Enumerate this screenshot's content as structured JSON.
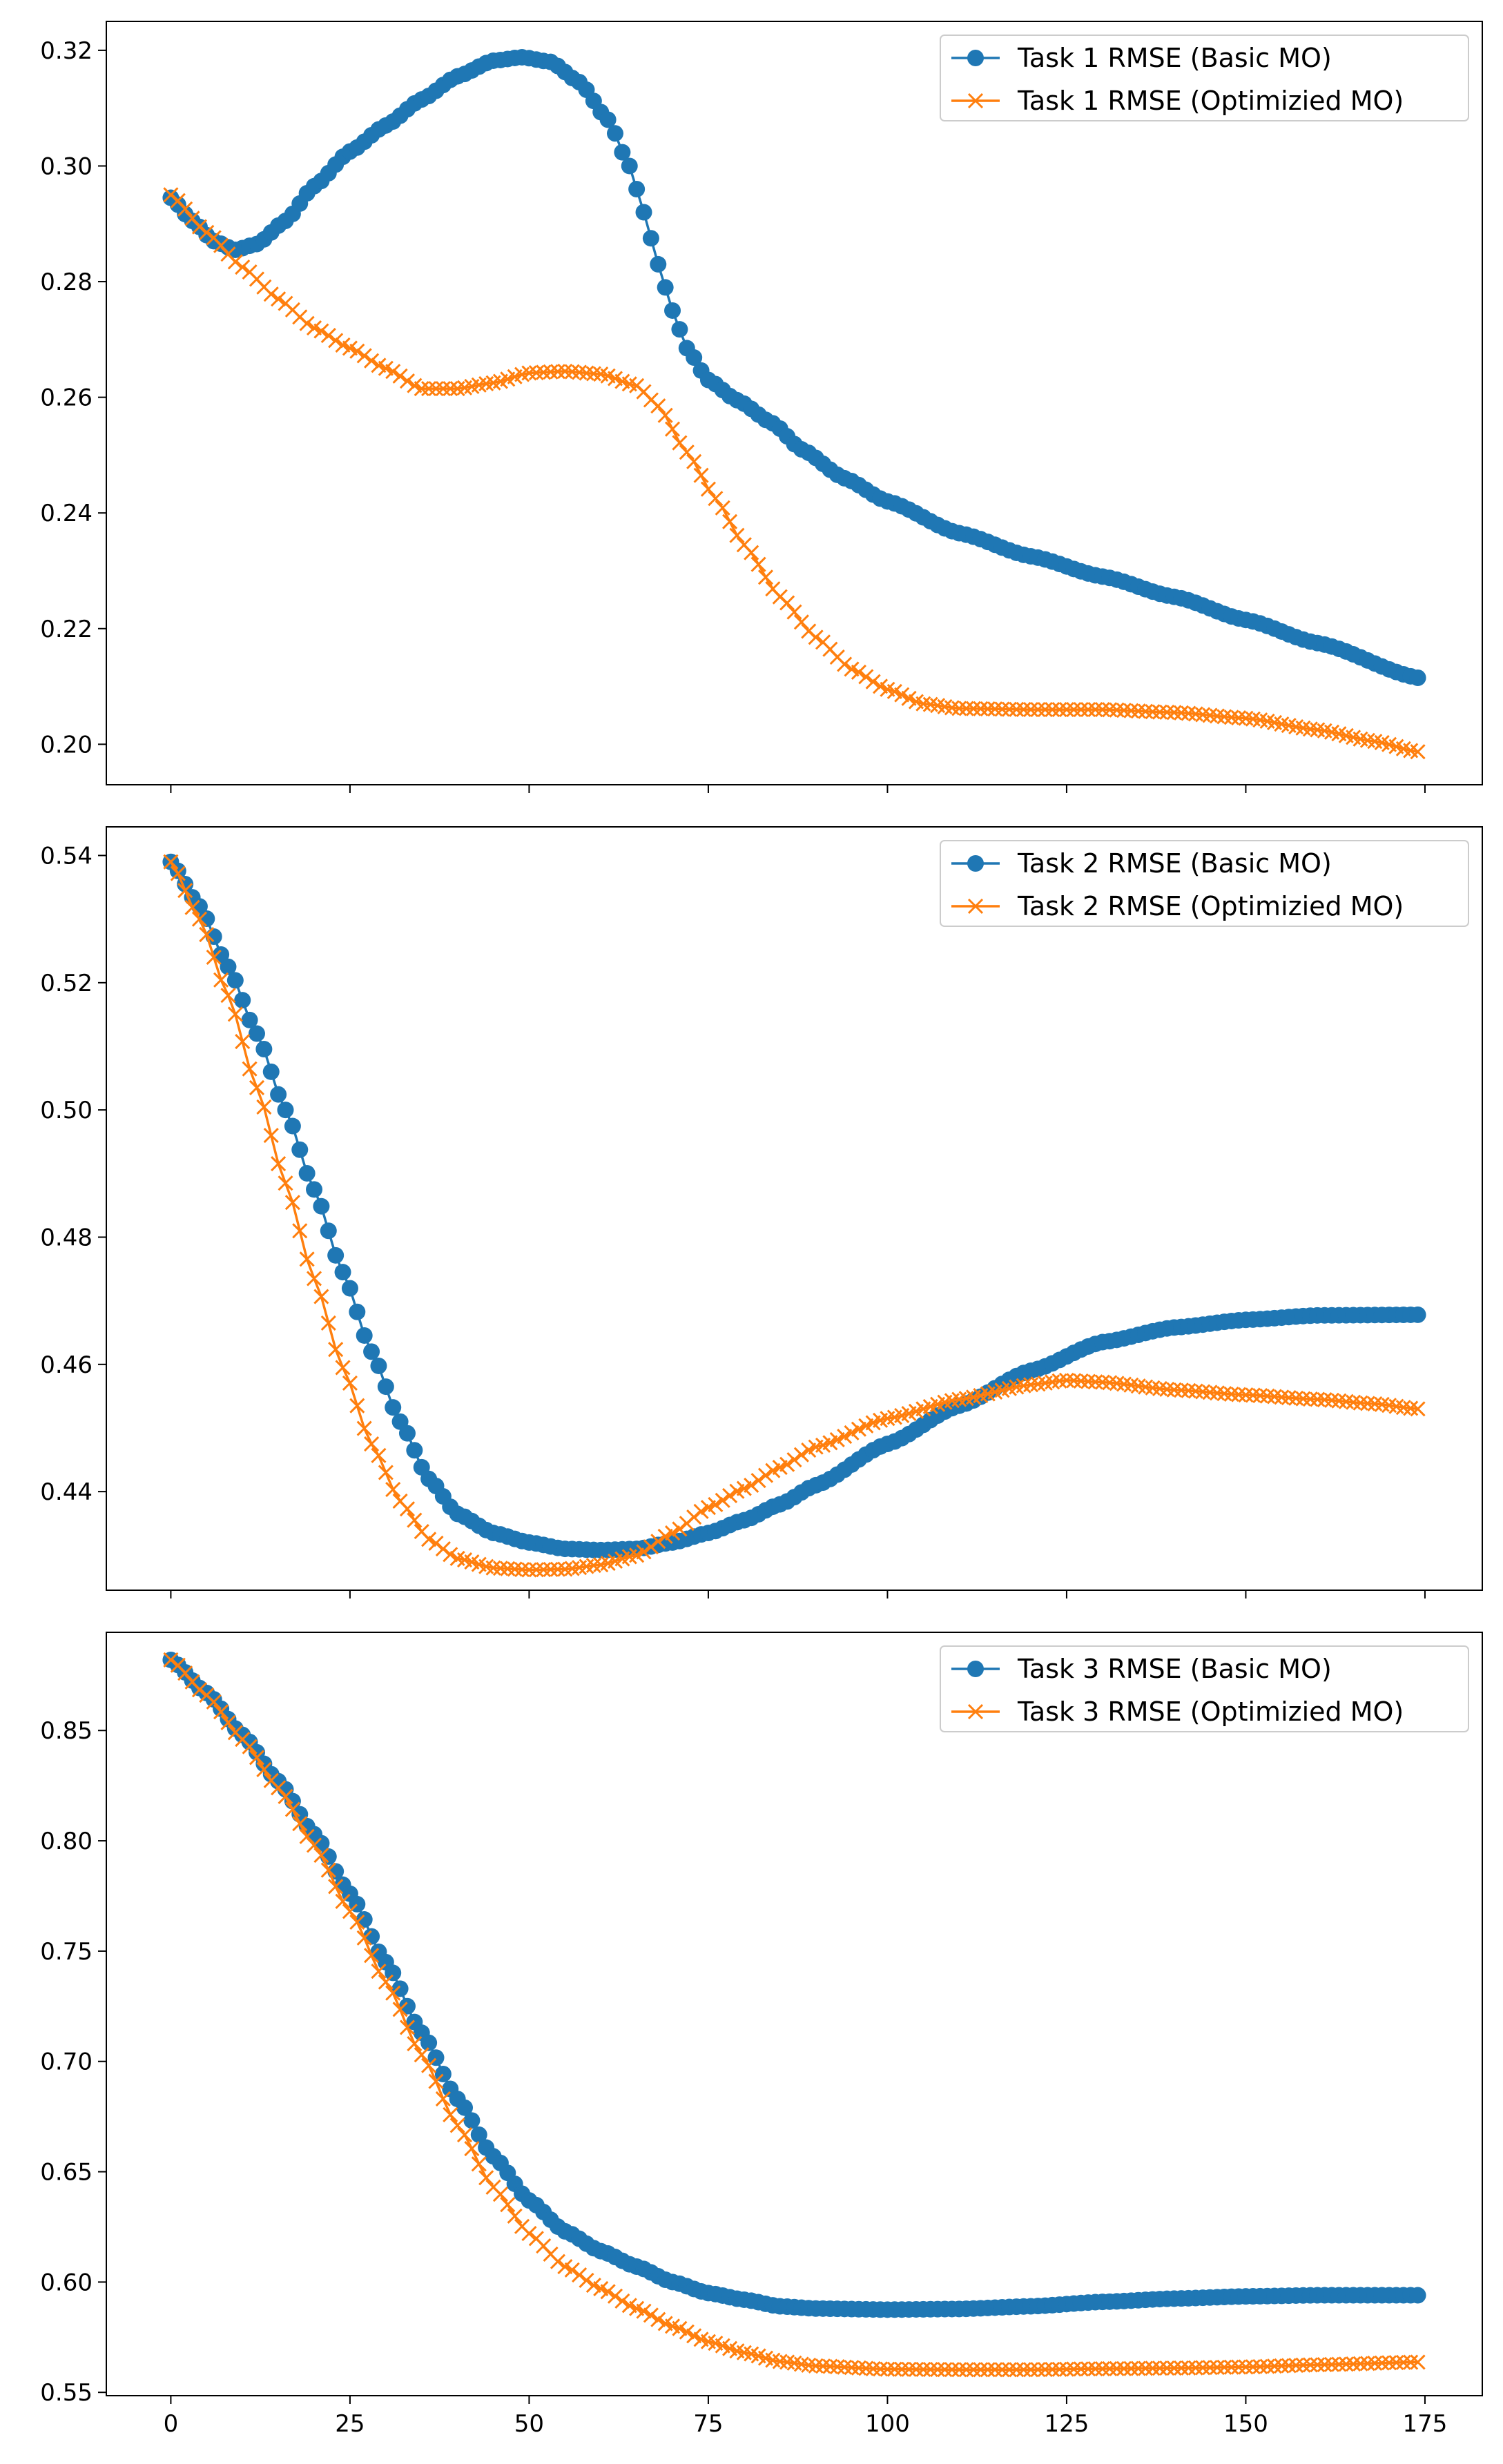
{
  "chart_data": [
    {
      "type": "line",
      "title": "",
      "xlabel": "",
      "ylabel": "",
      "xlim": [
        -9,
        183
      ],
      "ylim": [
        0.193,
        0.325
      ],
      "xticks": [
        0,
        25,
        50,
        75,
        100,
        125,
        150,
        175
      ],
      "show_x_tick_labels": false,
      "yticks": [
        0.2,
        0.22,
        0.24,
        0.26,
        0.28,
        0.3,
        0.32
      ],
      "ytick_labels": [
        "0.20",
        "0.22",
        "0.24",
        "0.26",
        "0.28",
        "0.30",
        "0.32"
      ],
      "legend_position": "upper right",
      "x_range": [
        0,
        174
      ],
      "series": [
        {
          "name": "Task 1 RMSE (Basic MO)",
          "marker": "circle",
          "color": "#1f77b4",
          "keypoints": [
            [
              0,
              0.2945
            ],
            [
              3,
              0.2905
            ],
            [
              6,
              0.287
            ],
            [
              9,
              0.2855
            ],
            [
              12,
              0.2865
            ],
            [
              16,
              0.2905
            ],
            [
              20,
              0.2965
            ],
            [
              25,
              0.3025
            ],
            [
              30,
              0.307
            ],
            [
              35,
              0.3115
            ],
            [
              40,
              0.3155
            ],
            [
              45,
              0.3182
            ],
            [
              49,
              0.3188
            ],
            [
              53,
              0.318
            ],
            [
              57,
              0.3145
            ],
            [
              61,
              0.308
            ],
            [
              64,
              0.3
            ],
            [
              66,
              0.292
            ],
            [
              68,
              0.283
            ],
            [
              70,
              0.275
            ],
            [
              72,
              0.2685
            ],
            [
              75,
              0.263
            ],
            [
              79,
              0.2595
            ],
            [
              84,
              0.2555
            ],
            [
              88,
              0.251
            ],
            [
              94,
              0.246
            ],
            [
              100,
              0.242
            ],
            [
              110,
              0.2365
            ],
            [
              120,
              0.2325
            ],
            [
              130,
              0.229
            ],
            [
              140,
              0.2255
            ],
            [
              150,
              0.2215
            ],
            [
              160,
              0.2175
            ],
            [
              174,
              0.2115
            ]
          ]
        },
        {
          "name": "Task 1 RMSE (Optimizied MO)",
          "marker": "x",
          "color": "#ff7f0e",
          "keypoints": [
            [
              0,
              0.295
            ],
            [
              5,
              0.2885
            ],
            [
              10,
              0.2825
            ],
            [
              15,
              0.277
            ],
            [
              20,
              0.272
            ],
            [
              25,
              0.2685
            ],
            [
              30,
              0.265
            ],
            [
              35,
              0.2615
            ],
            [
              40,
              0.2615
            ],
            [
              45,
              0.2625
            ],
            [
              50,
              0.2642
            ],
            [
              55,
              0.2645
            ],
            [
              60,
              0.264
            ],
            [
              65,
              0.262
            ],
            [
              68,
              0.2585
            ],
            [
              72,
              0.2505
            ],
            [
              76,
              0.2425
            ],
            [
              80,
              0.2345
            ],
            [
              85,
              0.2255
            ],
            [
              90,
              0.2185
            ],
            [
              95,
              0.213
            ],
            [
              100,
              0.2095
            ],
            [
              105,
              0.207
            ],
            [
              110,
              0.2062
            ],
            [
              120,
              0.206
            ],
            [
              130,
              0.206
            ],
            [
              140,
              0.2055
            ],
            [
              150,
              0.2045
            ],
            [
              160,
              0.2025
            ],
            [
              168,
              0.2005
            ],
            [
              174,
              0.1987
            ]
          ]
        }
      ]
    },
    {
      "type": "line",
      "title": "",
      "xlabel": "",
      "ylabel": "",
      "xlim": [
        -9,
        183
      ],
      "ylim": [
        0.4245,
        0.5445
      ],
      "xticks": [
        0,
        25,
        50,
        75,
        100,
        125,
        150,
        175
      ],
      "show_x_tick_labels": false,
      "yticks": [
        0.44,
        0.46,
        0.48,
        0.5,
        0.52,
        0.54
      ],
      "ytick_labels": [
        "0.44",
        "0.46",
        "0.48",
        "0.50",
        "0.52",
        "0.54"
      ],
      "legend_position": "upper right",
      "x_range": [
        0,
        174
      ],
      "series": [
        {
          "name": "Task 2 RMSE (Basic MO)",
          "marker": "circle",
          "color": "#1f77b4",
          "keypoints": [
            [
              0,
              0.539
            ],
            [
              4,
              0.532
            ],
            [
              8,
              0.5225
            ],
            [
              12,
              0.512
            ],
            [
              16,
              0.5
            ],
            [
              20,
              0.4875
            ],
            [
              24,
              0.4745
            ],
            [
              28,
              0.462
            ],
            [
              32,
              0.451
            ],
            [
              36,
              0.442
            ],
            [
              40,
              0.4365
            ],
            [
              45,
              0.4335
            ],
            [
              50,
              0.432
            ],
            [
              55,
              0.431
            ],
            [
              60,
              0.4308
            ],
            [
              65,
              0.431
            ],
            [
              70,
              0.432
            ],
            [
              75,
              0.4335
            ],
            [
              80,
              0.4355
            ],
            [
              85,
              0.438
            ],
            [
              90,
              0.441
            ],
            [
              100,
              0.4475
            ],
            [
              110,
              0.4535
            ],
            [
              120,
              0.459
            ],
            [
              130,
              0.4635
            ],
            [
              140,
              0.4658
            ],
            [
              150,
              0.467
            ],
            [
              160,
              0.4677
            ],
            [
              174,
              0.4678
            ]
          ]
        },
        {
          "name": "Task 2 RMSE (Optimizied MO)",
          "marker": "x",
          "color": "#ff7f0e",
          "keypoints": [
            [
              0,
              0.539
            ],
            [
              4,
              0.53
            ],
            [
              8,
              0.518
            ],
            [
              12,
              0.5035
            ],
            [
              16,
              0.4885
            ],
            [
              20,
              0.4735
            ],
            [
              24,
              0.4595
            ],
            [
              28,
              0.4475
            ],
            [
              32,
              0.4385
            ],
            [
              36,
              0.4325
            ],
            [
              40,
              0.4295
            ],
            [
              45,
              0.428
            ],
            [
              50,
              0.4277
            ],
            [
              55,
              0.4278
            ],
            [
              60,
              0.4285
            ],
            [
              65,
              0.43
            ],
            [
              70,
              0.4335
            ],
            [
              75,
              0.4375
            ],
            [
              80,
              0.4405
            ],
            [
              85,
              0.4438
            ],
            [
              90,
              0.447
            ],
            [
              100,
              0.4515
            ],
            [
              110,
              0.4545
            ],
            [
              120,
              0.4568
            ],
            [
              125,
              0.4575
            ],
            [
              130,
              0.4572
            ],
            [
              140,
              0.456
            ],
            [
              150,
              0.4552
            ],
            [
              160,
              0.4545
            ],
            [
              168,
              0.4538
            ],
            [
              174,
              0.453
            ]
          ]
        }
      ]
    },
    {
      "type": "line",
      "title": "",
      "xlabel": "",
      "ylabel": "",
      "xlim": [
        -9,
        183
      ],
      "ylim": [
        0.5485,
        0.8945
      ],
      "xticks": [
        0,
        25,
        50,
        75,
        100,
        125,
        150,
        175
      ],
      "xtick_labels": [
        "0",
        "25",
        "50",
        "75",
        "100",
        "125",
        "150",
        "175"
      ],
      "show_x_tick_labels": true,
      "yticks": [
        0.55,
        0.6,
        0.65,
        0.7,
        0.75,
        0.8,
        0.85
      ],
      "ytick_labels": [
        "0.55",
        "0.60",
        "0.65",
        "0.70",
        "0.75",
        "0.80",
        "0.85"
      ],
      "legend_position": "upper right",
      "x_range": [
        0,
        174
      ],
      "series": [
        {
          "name": "Task 3 RMSE (Basic MO)",
          "marker": "circle",
          "color": "#1f77b4",
          "keypoints": [
            [
              0,
              0.882
            ],
            [
              5,
              0.867
            ],
            [
              10,
              0.848
            ],
            [
              15,
              0.827
            ],
            [
              20,
              0.803
            ],
            [
              25,
              0.776
            ],
            [
              30,
              0.745
            ],
            [
              35,
              0.713
            ],
            [
              40,
              0.683
            ],
            [
              45,
              0.657
            ],
            [
              50,
              0.637
            ],
            [
              55,
              0.623
            ],
            [
              60,
              0.614
            ],
            [
              65,
              0.607
            ],
            [
              70,
              0.6
            ],
            [
              75,
              0.595
            ],
            [
              80,
              0.592
            ],
            [
              85,
              0.589
            ],
            [
              90,
              0.588
            ],
            [
              100,
              0.5875
            ],
            [
              110,
              0.5878
            ],
            [
              120,
              0.589
            ],
            [
              130,
              0.591
            ],
            [
              140,
              0.5925
            ],
            [
              150,
              0.5935
            ],
            [
              160,
              0.594
            ],
            [
              174,
              0.594
            ]
          ]
        },
        {
          "name": "Task 3 RMSE (Optimizied MO)",
          "marker": "x",
          "color": "#ff7f0e",
          "keypoints": [
            [
              0,
              0.882
            ],
            [
              5,
              0.866
            ],
            [
              10,
              0.846
            ],
            [
              15,
              0.824
            ],
            [
              20,
              0.798
            ],
            [
              25,
              0.768
            ],
            [
              30,
              0.736
            ],
            [
              35,
              0.703
            ],
            [
              40,
              0.671
            ],
            [
              45,
              0.643
            ],
            [
              50,
              0.622
            ],
            [
              55,
              0.607
            ],
            [
              60,
              0.597
            ],
            [
              65,
              0.588
            ],
            [
              70,
              0.58
            ],
            [
              75,
              0.573
            ],
            [
              80,
              0.568
            ],
            [
              85,
              0.564
            ],
            [
              90,
              0.562
            ],
            [
              100,
              0.5605
            ],
            [
              110,
              0.5603
            ],
            [
              120,
              0.5603
            ],
            [
              130,
              0.5607
            ],
            [
              140,
              0.561
            ],
            [
              150,
              0.5615
            ],
            [
              160,
              0.5625
            ],
            [
              174,
              0.5637
            ]
          ]
        }
      ]
    }
  ]
}
